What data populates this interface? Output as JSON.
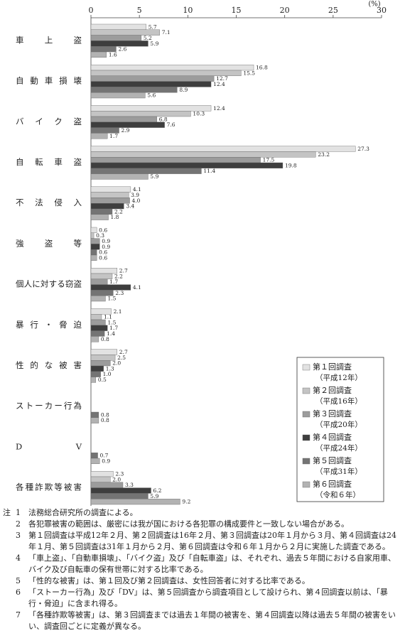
{
  "chart_data": {
    "type": "hbar",
    "unit_label": "(%)",
    "categories": [
      "車上盗",
      "自動車損壊",
      "バイク盗",
      "自転車盗",
      "不法侵入",
      "強盗等",
      "個人に対する窃盗",
      "暴行・脅迫",
      "性的な被害",
      "ストーカー行為",
      "DV",
      "各種詐欺等被害"
    ],
    "xlim": [
      0,
      30
    ],
    "xticks": [
      0,
      5,
      10,
      15,
      20,
      25,
      30
    ],
    "series": [
      {
        "name": "第１回調査",
        "period": "（平成12年）",
        "color": "#e2e2e2",
        "values": [
          5.7,
          16.8,
          12.4,
          27.3,
          4.1,
          0.6,
          2.7,
          2.1,
          2.7,
          null,
          null,
          2.3
        ],
        "value_labels": [
          "5.7",
          "16.8",
          "12.4",
          "27.3",
          "4.1",
          "0.6",
          "2.7",
          "2.1",
          "2.7",
          null,
          null,
          "2.3"
        ]
      },
      {
        "name": "第２回調査",
        "period": "（平成16年）",
        "color": "#c4c4c4",
        "values": [
          7.1,
          15.5,
          10.3,
          23.2,
          3.9,
          0.3,
          2.2,
          1.1,
          2.5,
          null,
          null,
          2.0
        ],
        "value_labels": [
          "7.1",
          "15.5",
          "10.3",
          "23.2",
          "3.9",
          "0.3",
          "2.2",
          "1.1",
          "2.5",
          null,
          null,
          "2.0"
        ]
      },
      {
        "name": "第３回調査",
        "period": "（平成20年）",
        "color": "#9c9c9c",
        "values": [
          5.2,
          12.7,
          6.8,
          17.5,
          4.0,
          0.9,
          1.7,
          1.5,
          2.0,
          null,
          null,
          3.3
        ],
        "value_labels": [
          "5.2",
          "12.7",
          "6.8",
          "17.5",
          "4.0",
          "0.9",
          "1.7",
          "1.5",
          "2.0",
          null,
          null,
          "3.3"
        ]
      },
      {
        "name": "第４回調査",
        "period": "（平成24年）",
        "color": "#3e3e3e",
        "values": [
          5.9,
          12.4,
          7.6,
          19.8,
          3.4,
          0.9,
          4.1,
          1.7,
          1.3,
          null,
          null,
          6.2
        ],
        "value_labels": [
          "5.9",
          "12.4",
          "7.6",
          "19.8",
          "3.4",
          "0.9",
          "4.1",
          "1.7",
          "1.3",
          null,
          null,
          "6.2"
        ]
      },
      {
        "name": "第５回調査",
        "period": "（平成31年）",
        "color": "#747474",
        "values": [
          2.6,
          8.9,
          2.9,
          11.4,
          2.2,
          0.6,
          2.3,
          1.4,
          1.0,
          0.8,
          0.7,
          5.9
        ],
        "value_labels": [
          "2.6",
          "8.9",
          "2.9",
          "11.4",
          "2.2",
          "0.6",
          "2.3",
          "1.4",
          "1.0",
          "0.8",
          "0.7",
          "5.9"
        ]
      },
      {
        "name": "第６回調査",
        "period": "（令和６年）",
        "color": "#b2b2b2",
        "values": [
          1.6,
          5.6,
          1.7,
          5.9,
          1.8,
          0.6,
          1.5,
          0.8,
          0.5,
          0.8,
          0.9,
          9.2
        ],
        "value_labels": [
          "1.6",
          "5.6",
          "1.7",
          "5.9",
          "1.8",
          "0.6",
          "1.5",
          "0.8",
          "0.5",
          "0.8",
          "0.9",
          "9.2"
        ]
      }
    ]
  },
  "notes": {
    "label": "注",
    "items": [
      {
        "num": "1",
        "text": "法務総合研究所の調査による。"
      },
      {
        "num": "2",
        "text": "各犯罪被害の範囲は、厳密には我が国における各犯罪の構成要件と一致しない場合がある。"
      },
      {
        "num": "3",
        "text": "第１回調査は平成12年２月、第２回調査は16年２月、第３回調査は20年１月から３月、第４回調査は24年１月、第５回調査は31年１月から２月、第６回調査は令和６年１月から２月に実施した調査である。"
      },
      {
        "num": "4",
        "text": "「車上盗」、「自動車損壊」、「バイク盗」及び「自転車盗」は、それぞれ、過去５年間における自家用車、バイク及び自転車の保有世帯に対する比率である。"
      },
      {
        "num": "5",
        "text": "「性的な被害」は、第１回及び第２回調査は、女性回答者に対する比率である。"
      },
      {
        "num": "6",
        "text": "「ストーカー行為」及び「DV」は、第５回調査から調査項目として設けられ、第４回調査以前は、「暴行・脅迫」に含まれ得る。"
      },
      {
        "num": "7",
        "text": "「各種詐欺等被害」は、第３回調査までは過去１年間の被害を、第４回調査以降は過去５年間の被害をいい、調査回ごとに定義が異なる。"
      }
    ]
  }
}
